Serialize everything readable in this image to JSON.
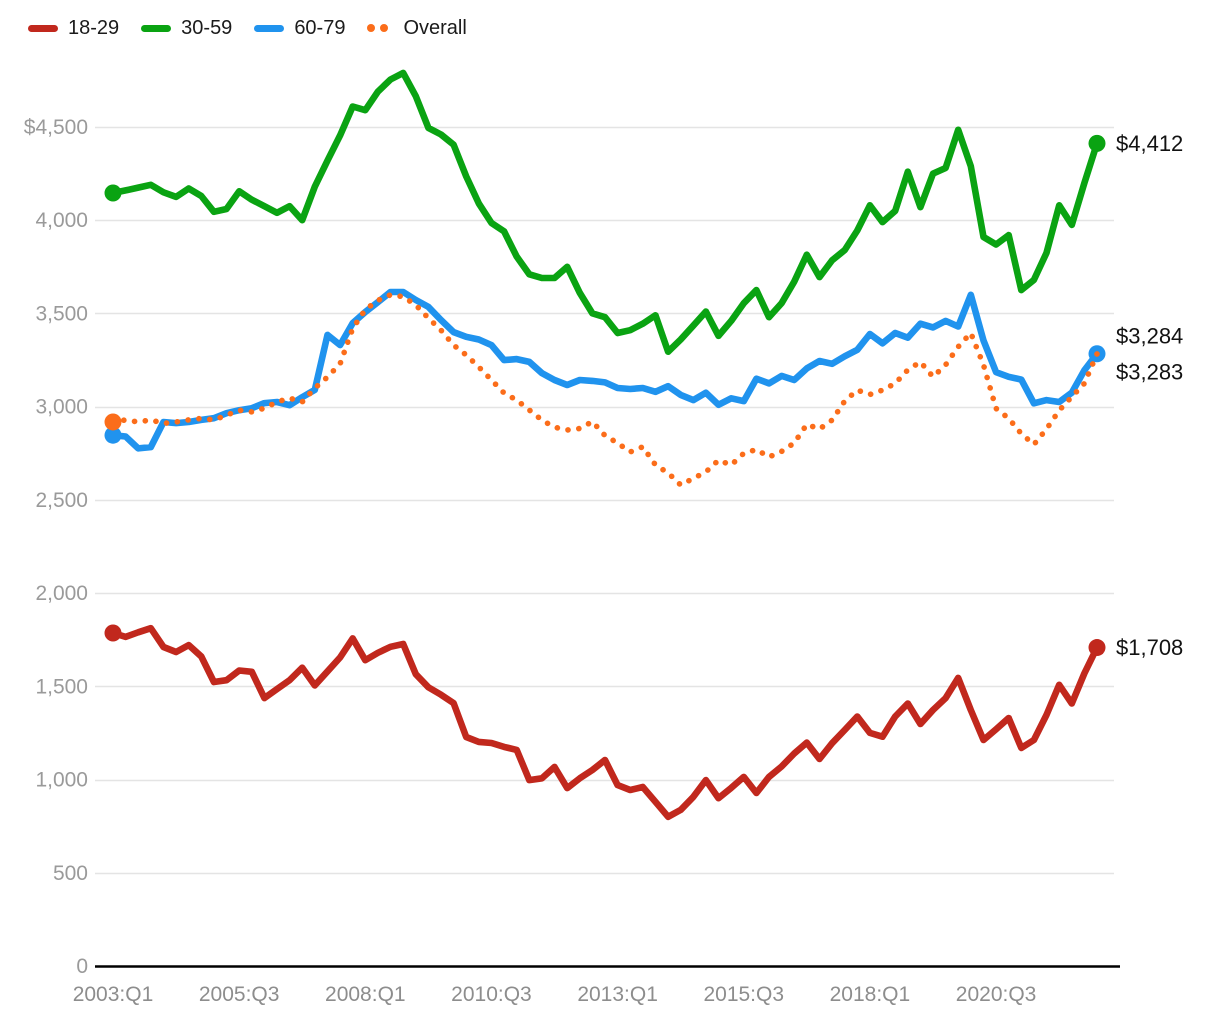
{
  "legend": [
    {
      "label": "18-29",
      "color": "#c1281d",
      "style": "line"
    },
    {
      "label": "30-59",
      "color": "#0aa312",
      "style": "line"
    },
    {
      "label": "60-79",
      "color": "#2093ee",
      "style": "line"
    },
    {
      "label": "Overall",
      "color": "#fb6d1a",
      "style": "dots"
    }
  ],
  "colors": {
    "red": "#c1281d",
    "green": "#0aa312",
    "blue": "#2093ee",
    "orange": "#fb6d1a",
    "gridline": "#e4e4e4",
    "axis_line": "#000000",
    "y_tick_text": "#9a9a9a",
    "x_tick_text": "#8d8d8d",
    "end_label_text": "#121212"
  },
  "chart_data": {
    "type": "line",
    "title": "",
    "xlabel": "",
    "ylabel": "",
    "grid": "horizontal",
    "legend_position": "top-left",
    "ylim": [
      0,
      4500
    ],
    "y_ticks": [
      {
        "value": 0,
        "label": "0"
      },
      {
        "value": 500,
        "label": "500"
      },
      {
        "value": 1000,
        "label": "1,000"
      },
      {
        "value": 1500,
        "label": "1,500"
      },
      {
        "value": 2000,
        "label": "2,000"
      },
      {
        "value": 2500,
        "label": "2,500"
      },
      {
        "value": 3000,
        "label": "3,000"
      },
      {
        "value": 3500,
        "label": "3,500"
      },
      {
        "value": 4000,
        "label": "4,000"
      },
      {
        "value": 4500,
        "label": "$4,500"
      }
    ],
    "x_tick_indices": [
      0,
      10,
      20,
      30,
      40,
      50,
      60,
      70
    ],
    "x_tick_labels": [
      "2003:Q1",
      "2005:Q3",
      "2008:Q1",
      "2010:Q3",
      "2013:Q1",
      "2015:Q3",
      "2018:Q1",
      "2020:Q3"
    ],
    "x": [
      "2003:Q1",
      "2003:Q2",
      "2003:Q3",
      "2003:Q4",
      "2004:Q1",
      "2004:Q2",
      "2004:Q3",
      "2004:Q4",
      "2005:Q1",
      "2005:Q2",
      "2005:Q3",
      "2005:Q4",
      "2006:Q1",
      "2006:Q2",
      "2006:Q3",
      "2006:Q4",
      "2007:Q1",
      "2007:Q2",
      "2007:Q3",
      "2007:Q4",
      "2008:Q1",
      "2008:Q2",
      "2008:Q3",
      "2008:Q4",
      "2009:Q1",
      "2009:Q2",
      "2009:Q3",
      "2009:Q4",
      "2010:Q1",
      "2010:Q2",
      "2010:Q3",
      "2010:Q4",
      "2011:Q1",
      "2011:Q2",
      "2011:Q3",
      "2011:Q4",
      "2012:Q1",
      "2012:Q2",
      "2012:Q3",
      "2012:Q4",
      "2013:Q1",
      "2013:Q2",
      "2013:Q3",
      "2013:Q4",
      "2014:Q1",
      "2014:Q2",
      "2014:Q3",
      "2014:Q4",
      "2015:Q1",
      "2015:Q2",
      "2015:Q3",
      "2015:Q4",
      "2016:Q1",
      "2016:Q2",
      "2016:Q3",
      "2016:Q4",
      "2017:Q1",
      "2017:Q2",
      "2017:Q3",
      "2017:Q4",
      "2018:Q1",
      "2018:Q2",
      "2018:Q3",
      "2018:Q4",
      "2019:Q1",
      "2019:Q2",
      "2019:Q3",
      "2019:Q4",
      "2020:Q1",
      "2020:Q2",
      "2020:Q3",
      "2020:Q4",
      "2021:Q1",
      "2021:Q2",
      "2021:Q3",
      "2021:Q4",
      "2022:Q1",
      "2022:Q2",
      "2022:Q3"
    ],
    "series": [
      {
        "name": "30-59",
        "color": "#0aa312",
        "line_style": "solid",
        "end_label": "$4,412",
        "end_value": 4412,
        "values": [
          4146,
          4160,
          4175,
          4190,
          4150,
          4125,
          4170,
          4130,
          4045,
          4060,
          4155,
          4110,
          4075,
          4040,
          4075,
          4000,
          4180,
          4320,
          4455,
          4610,
          4590,
          4690,
          4755,
          4790,
          4665,
          4495,
          4460,
          4405,
          4235,
          4090,
          3985,
          3940,
          3805,
          3710,
          3690,
          3690,
          3750,
          3610,
          3500,
          3480,
          3395,
          3410,
          3445,
          3490,
          3295,
          3360,
          3435,
          3510,
          3380,
          3460,
          3555,
          3625,
          3480,
          3555,
          3670,
          3815,
          3695,
          3785,
          3840,
          3945,
          4080,
          3990,
          4050,
          4260,
          4070,
          4250,
          4280,
          4485,
          4290,
          3910,
          3870,
          3920,
          3625,
          3680,
          3825,
          4080,
          3975,
          4200,
          4412
        ]
      },
      {
        "name": "60-79",
        "color": "#2093ee",
        "line_style": "solid",
        "end_label": "$3,284",
        "end_value": 3284,
        "values": [
          2847,
          2840,
          2776,
          2783,
          2918,
          2912,
          2918,
          2929,
          2938,
          2965,
          2981,
          2992,
          3019,
          3025,
          3008,
          3051,
          3090,
          3385,
          3330,
          3448,
          3508,
          3561,
          3615,
          3615,
          3572,
          3535,
          3465,
          3400,
          3375,
          3360,
          3330,
          3250,
          3255,
          3240,
          3180,
          3143,
          3116,
          3143,
          3138,
          3130,
          3100,
          3095,
          3100,
          3080,
          3110,
          3063,
          3035,
          3075,
          3010,
          3045,
          3030,
          3150,
          3125,
          3165,
          3143,
          3205,
          3245,
          3230,
          3270,
          3305,
          3390,
          3340,
          3395,
          3370,
          3445,
          3425,
          3460,
          3430,
          3600,
          3355,
          3185,
          3160,
          3145,
          3018,
          3035,
          3025,
          3075,
          3195,
          3284
        ]
      },
      {
        "name": "Overall",
        "color": "#fb6d1a",
        "line_style": "dotted",
        "end_label": "$3,283",
        "end_value": 3283,
        "values": [
          2918,
          2929,
          2918,
          2929,
          2910,
          2918,
          2929,
          2937,
          2929,
          2954,
          2981,
          2972,
          2992,
          3025,
          3046,
          3025,
          3099,
          3159,
          3230,
          3420,
          3520,
          3570,
          3600,
          3590,
          3545,
          3475,
          3410,
          3330,
          3277,
          3213,
          3143,
          3073,
          3035,
          2982,
          2928,
          2890,
          2875,
          2883,
          2920,
          2845,
          2805,
          2757,
          2785,
          2687,
          2645,
          2580,
          2615,
          2650,
          2713,
          2687,
          2750,
          2770,
          2730,
          2760,
          2805,
          2905,
          2880,
          2928,
          3030,
          3089,
          3065,
          3089,
          3125,
          3197,
          3240,
          3160,
          3224,
          3321,
          3395,
          3224,
          2990,
          2937,
          2855,
          2797,
          2880,
          2980,
          3053,
          3125,
          3283
        ]
      },
      {
        "name": "18-29",
        "color": "#c1281d",
        "line_style": "solid",
        "end_label": "$1,708",
        "end_value": 1708,
        "values": [
          1786,
          1765,
          1790,
          1812,
          1711,
          1684,
          1721,
          1660,
          1523,
          1533,
          1585,
          1578,
          1437,
          1485,
          1533,
          1600,
          1505,
          1580,
          1655,
          1757,
          1640,
          1680,
          1712,
          1727,
          1565,
          1495,
          1455,
          1410,
          1228,
          1202,
          1196,
          1175,
          1159,
          997,
          1007,
          1068,
          954,
          1007,
          1051,
          1105,
          970,
          944,
          960,
          880,
          800,
          837,
          907,
          997,
          900,
          955,
          1014,
          928,
          1014,
          1070,
          1140,
          1198,
          1110,
          1195,
          1266,
          1338,
          1250,
          1230,
          1338,
          1408,
          1298,
          1373,
          1437,
          1545,
          1373,
          1212,
          1270,
          1330,
          1170,
          1212,
          1347,
          1508,
          1408,
          1570,
          1708
        ]
      }
    ]
  }
}
